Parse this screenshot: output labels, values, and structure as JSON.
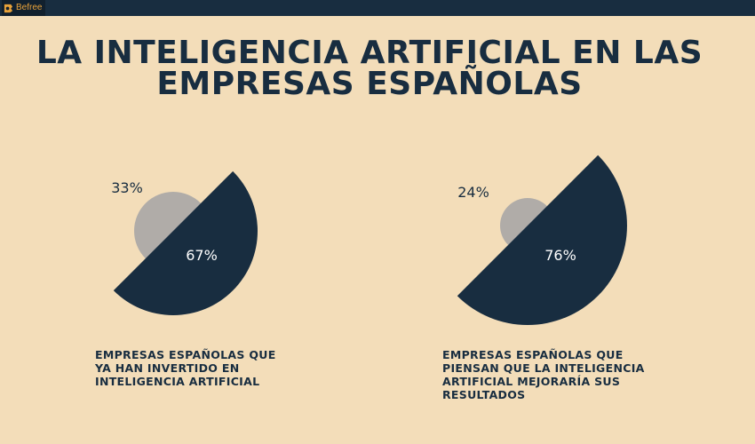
{
  "brand": {
    "name": "Befree",
    "color": "#e8a23a"
  },
  "title": {
    "line1": "LA INTELIGENCIA ARTIFICIAL EN LAS",
    "line2": "EMPRESAS ESPAÑOLAS"
  },
  "colors": {
    "background": "#f3ddb9",
    "dark": "#182d40",
    "grey": "#b0aca8",
    "topbar": "#182d40"
  },
  "chart_data": [
    {
      "type": "pie",
      "slices": [
        {
          "label": "67%",
          "value": 67,
          "color": "#182d40"
        },
        {
          "label": "33%",
          "value": 33,
          "color": "#b0aca8"
        }
      ],
      "caption": "EMPRESAS ESPAÑOLAS QUE YA HAN INVERTIDO EN INTELIGENCIA ARTIFICIAL"
    },
    {
      "type": "pie",
      "slices": [
        {
          "label": "76%",
          "value": 76,
          "color": "#182d40"
        },
        {
          "label": "24%",
          "value": 24,
          "color": "#b0aca8"
        }
      ],
      "caption": "EMPRESAS ESPAÑOLAS QUE PIENSAN QUE LA INTELIGENCIA ARTIFICIAL MEJORARÍA SUS RESULTADOS"
    }
  ]
}
